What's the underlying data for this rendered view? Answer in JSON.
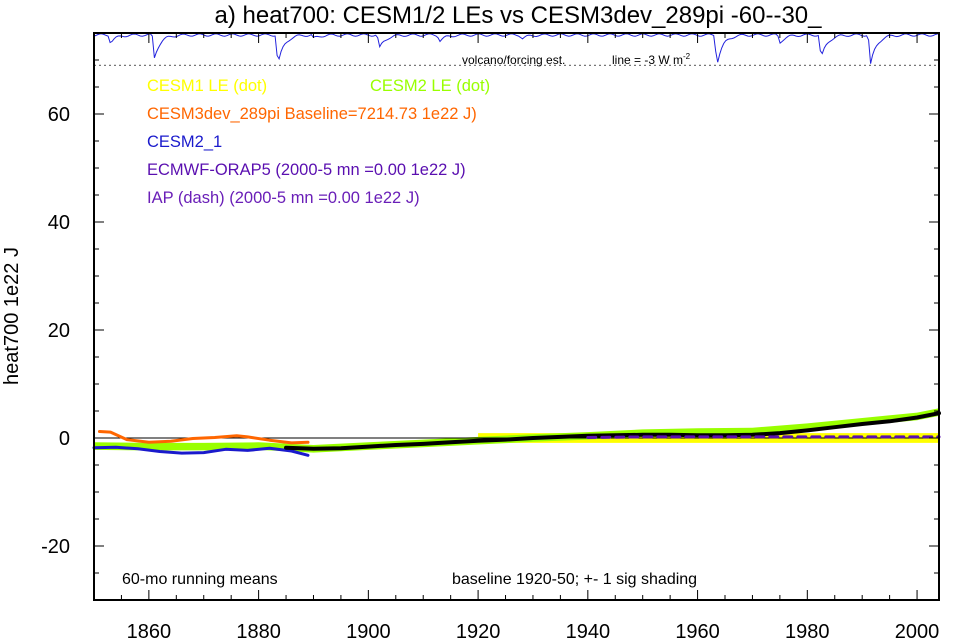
{
  "chart_data": {
    "type": "line",
    "title": "a) heat700: CESM1/2 LEs vs CESM3dev_289pi -60--30_",
    "ylabel": "heat700 1e22 J",
    "xlabel": "",
    "xlim": [
      1850,
      2004
    ],
    "ylim": [
      -30,
      75
    ],
    "x_ticks": [
      1860,
      1880,
      1900,
      1920,
      1940,
      1960,
      1980,
      2000
    ],
    "y_ticks": [
      -20,
      0,
      20,
      40,
      60
    ],
    "zero_line": true,
    "grid": false,
    "legend_placement": "top-left",
    "legend": [
      {
        "text": "CESM1 LE (dot)",
        "color": "#ffff00"
      },
      {
        "text": "CESM2 LE (dot)",
        "color": "#99ff00"
      },
      {
        "text": "CESM3dev_289pi Baseline=7214.73 1e22 J)",
        "color": "#ff6600"
      },
      {
        "text": "CESM2_1",
        "color": "#1a1acc"
      },
      {
        "text": "ECMWF-ORAP5 (2000-5 mn =0.00 1e22 J)",
        "color": "#5a0fb0"
      },
      {
        "text": "IAP (dash) (2000-5 mn =0.00 1e22 J)",
        "color": "#6a1fb8"
      }
    ],
    "annotations": {
      "volcano_label": "volcano/forcing est.",
      "line_label": "line = -3 W m",
      "line_label_sup": "-2",
      "bottom_left": "60-mo running means",
      "bottom_right": "baseline 1920-50; +- 1 sig shading"
    },
    "volcano_reference_y": 69,
    "volcano_spikes": [
      {
        "year": 1853,
        "depth": 0.25
      },
      {
        "year": 1861,
        "depth": 0.75
      },
      {
        "year": 1883.5,
        "depth": 1.0
      },
      {
        "year": 1890,
        "depth": 0.12
      },
      {
        "year": 1902,
        "depth": 0.45
      },
      {
        "year": 1913,
        "depth": 0.2
      },
      {
        "year": 1928,
        "depth": 0.12
      },
      {
        "year": 1963.5,
        "depth": 1.0
      },
      {
        "year": 1975,
        "depth": 0.25
      },
      {
        "year": 1982.5,
        "depth": 0.8
      },
      {
        "year": 1991.5,
        "depth": 1.0
      }
    ],
    "series": [
      {
        "name": "CESM1 LE (dot)",
        "color": "#ffff00",
        "style": "shading",
        "x": [
          1920,
          1940,
          1960,
          1980,
          2004
        ],
        "y": [
          0,
          0,
          0,
          0,
          0
        ],
        "spread": 0.9
      },
      {
        "name": "CESM2 LE (dot)",
        "color": "#99ff00",
        "style": "shading",
        "x": [
          1850,
          1860,
          1870,
          1880,
          1890,
          1900,
          1910,
          1920,
          1930,
          1940,
          1950,
          1960,
          1970,
          1980,
          1990,
          2000,
          2004
        ],
        "y": [
          -1.5,
          -1.6,
          -1.6,
          -1.5,
          -2.0,
          -1.5,
          -1.0,
          -0.5,
          0,
          0.4,
          0.9,
          1.1,
          1.2,
          2.0,
          3.0,
          4.0,
          4.8
        ],
        "spread": 0.7
      },
      {
        "name": "CESM3dev_289pi",
        "color": "#ff6600",
        "style": "solid",
        "x": [
          1851,
          1853,
          1856,
          1860,
          1864,
          1868,
          1872,
          1876,
          1878,
          1882,
          1886,
          1889
        ],
        "y": [
          1.2,
          1.1,
          -0.3,
          -0.8,
          -0.6,
          -0.1,
          0.1,
          0.4,
          0.2,
          -0.4,
          -0.9,
          -0.8
        ]
      },
      {
        "name": "CESM2_1",
        "color": "#1a1acc",
        "style": "solid",
        "x": [
          1850,
          1854,
          1858,
          1862,
          1866,
          1870,
          1874,
          1878,
          1882,
          1886,
          1889
        ],
        "y": [
          -1.8,
          -1.7,
          -2.0,
          -2.5,
          -2.8,
          -2.7,
          -2.1,
          -2.3,
          -1.9,
          -2.4,
          -3.2
        ]
      },
      {
        "name": "CESM LE mean (black)",
        "color": "#000000",
        "style": "thick",
        "x": [
          1885,
          1890,
          1895,
          1900,
          1905,
          1910,
          1915,
          1920,
          1925,
          1930,
          1935,
          1940,
          1945,
          1950,
          1955,
          1960,
          1965,
          1970,
          1975,
          1980,
          1985,
          1990,
          1995,
          2000,
          2004
        ],
        "y": [
          -1.8,
          -2.0,
          -1.9,
          -1.6,
          -1.3,
          -1.1,
          -0.8,
          -0.5,
          -0.3,
          0,
          0.2,
          0.4,
          0.5,
          0.6,
          0.6,
          0.5,
          0.5,
          0.6,
          0.9,
          1.4,
          2.0,
          2.6,
          3.1,
          3.8,
          4.6
        ]
      },
      {
        "name": "ECMWF-ORAP5",
        "color": "#5a0fb0",
        "style": "dash",
        "x": [
          1940,
          1950,
          1960,
          1970,
          1980,
          1990,
          2004
        ],
        "y": [
          0.1,
          0.2,
          0.2,
          0.2,
          0.2,
          0.2,
          0.2
        ]
      }
    ]
  }
}
